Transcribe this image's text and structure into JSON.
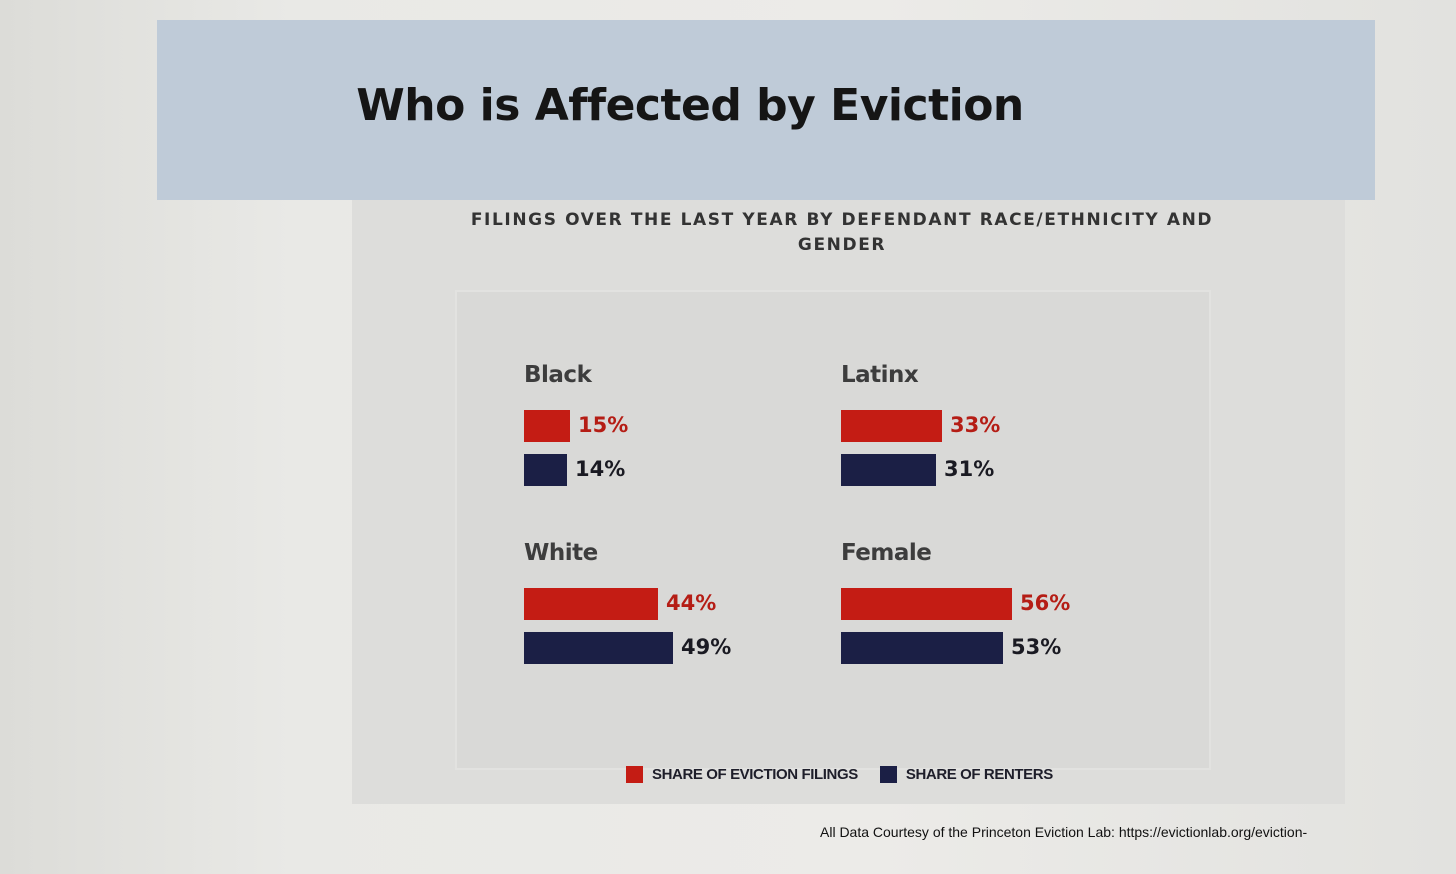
{
  "title": "Who is Affected by Eviction",
  "chart_data": {
    "type": "bar",
    "subtitle": "FILINGS OVER THE LAST YEAR BY DEFENDANT RACE/ETHNICITY AND GENDER",
    "categories": [
      "Black",
      "Latinx",
      "White",
      "Female"
    ],
    "series": [
      {
        "name": "SHARE OF EVICTION FILINGS",
        "values": [
          15,
          33,
          44,
          56
        ],
        "labels": [
          "15%",
          "33%",
          "44%",
          "56%"
        ],
        "color": "#c41c14"
      },
      {
        "name": "SHARE OF RENTERS",
        "values": [
          14,
          31,
          49,
          53
        ],
        "labels": [
          "14%",
          "31%",
          "49%",
          "53%"
        ],
        "color": "#1b1f45"
      }
    ],
    "value_label_colors": [
      "#b51d15",
      "#1a1a22"
    ],
    "unit": "%",
    "legend_position": "bottom"
  },
  "credit": "All Data Courtesy of the Princeton Eviction Lab: https://evictionlab.org/eviction-"
}
